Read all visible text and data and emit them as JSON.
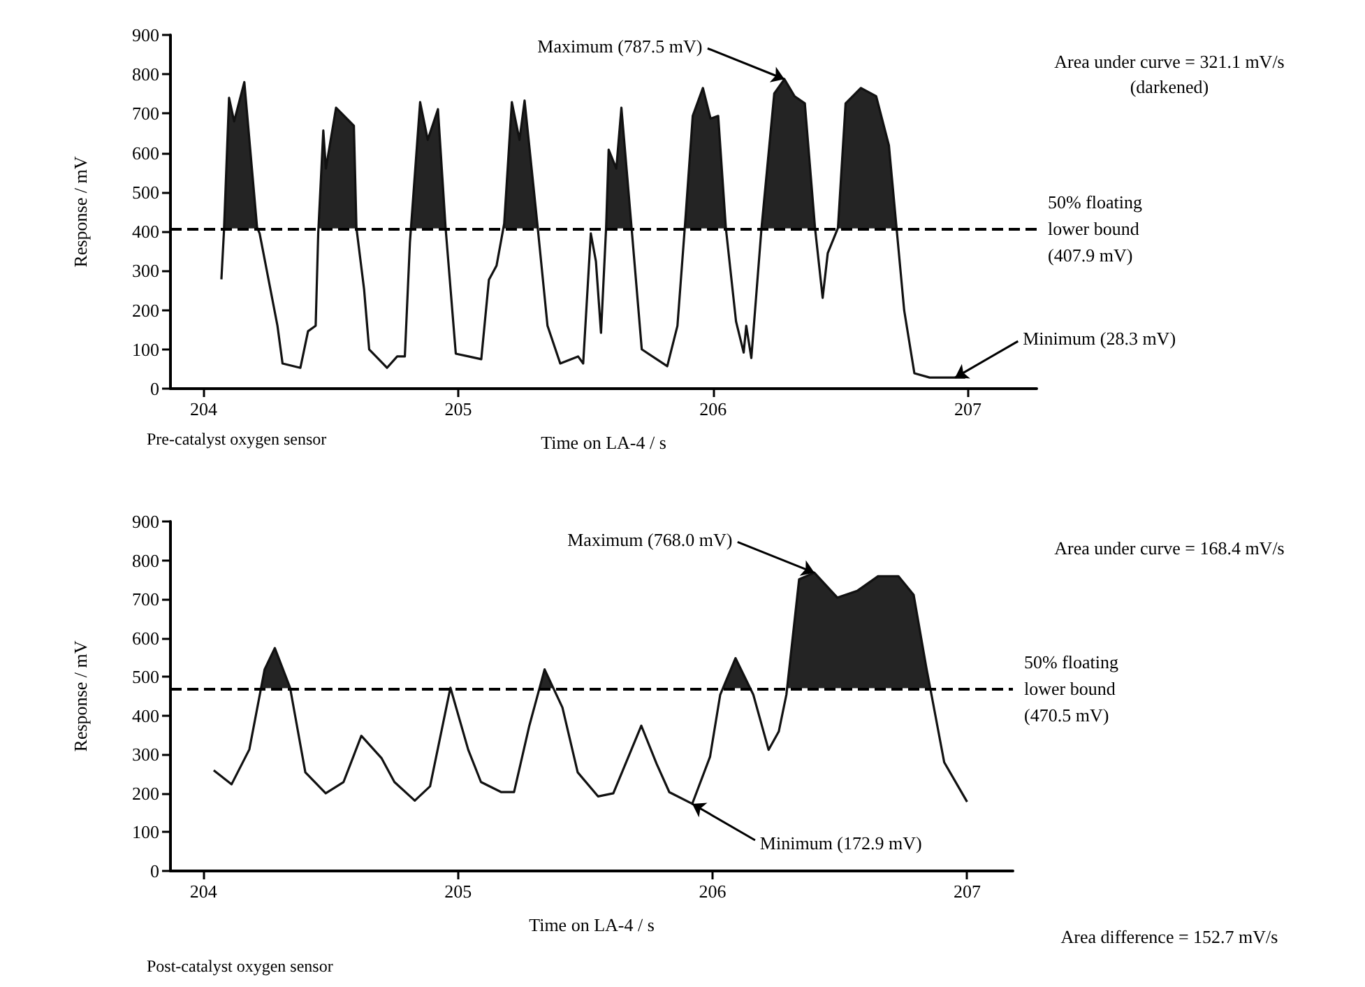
{
  "chart_data": [
    {
      "type": "area",
      "title": "Pre-catalyst oxygen sensor",
      "xlabel": "Time on LA-4 / s",
      "ylabel": "Response / mV",
      "marker": "none",
      "xlim": [
        203.87,
        207.27
      ],
      "xticks": [
        204,
        205,
        206,
        207
      ],
      "ylim": [
        0,
        900
      ],
      "yticks": [
        0,
        100,
        200,
        300,
        400,
        500,
        600,
        700,
        800,
        900
      ],
      "series": [
        {
          "color": "#111111",
          "x": [
            204.07,
            204.08,
            204.1,
            204.12,
            204.16,
            204.21,
            204.22,
            204.29,
            204.31,
            204.38,
            204.41,
            204.44,
            204.45,
            204.47,
            204.48,
            204.52,
            204.59,
            204.6,
            204.63,
            204.65,
            204.72,
            204.76,
            204.79,
            204.81,
            204.85,
            204.88,
            204.92,
            204.95,
            204.99,
            205.04,
            205.09,
            205.12,
            205.15,
            205.18,
            205.21,
            205.24,
            205.26,
            205.31,
            205.35,
            205.4,
            205.47,
            205.49,
            205.52,
            205.54,
            205.56,
            205.58,
            205.59,
            205.62,
            205.64,
            205.68,
            205.72,
            205.82,
            205.86,
            205.89,
            205.92,
            205.96,
            205.99,
            206.02,
            206.05,
            206.09,
            206.12,
            206.13,
            206.15,
            206.19,
            206.24,
            206.28,
            206.32,
            206.36,
            206.4,
            206.43,
            206.45,
            206.49,
            206.52,
            206.58,
            206.64,
            206.69,
            206.72,
            206.75,
            206.79,
            206.85,
            206.99
          ],
          "values": [
            278,
            400,
            740,
            680,
            780,
            410,
            395,
            160,
            64,
            53,
            146,
            160,
            395,
            657,
            560,
            715,
            669,
            409,
            253,
            100,
            53,
            82,
            82,
            373,
            729,
            633,
            711,
            409,
            89,
            82,
            75,
            277,
            313,
            420,
            729,
            633,
            733,
            420,
            160,
            64,
            82,
            64,
            395,
            324,
            142,
            409,
            608,
            560,
            715,
            409,
            100,
            57,
            160,
            420,
            694,
            765,
            687,
            694,
            409,
            171,
            92,
            160,
            78,
            409,
            751,
            787.5,
            744,
            726,
            409,
            231,
            345,
            409,
            726,
            765,
            744,
            619,
            409,
            199,
            39,
            28.3,
            28.3
          ]
        }
      ],
      "ref_lines": [
        {
          "axis": "y",
          "value": 407.9,
          "label": "50% floating\nlower bound\n(407.9 mV)",
          "line_style": "dashed"
        }
      ],
      "annotations": [
        {
          "text": "Maximum (787.5 mV)",
          "x": 206.28,
          "y": 787.5
        },
        {
          "text": "Minimum (28.3 mV)",
          "x": 206.95,
          "y": 28.3
        },
        "Area under curve = 321.1 mV/s\n(darkened)"
      ]
    },
    {
      "type": "area",
      "title": "Post-catalyst oxygen sensor",
      "xlabel": "Time on LA-4 / s",
      "ylabel": "Response / mV",
      "marker": "none",
      "xlim": [
        203.87,
        207.18
      ],
      "xticks": [
        204,
        205,
        206,
        207
      ],
      "ylim": [
        0,
        900
      ],
      "yticks": [
        0,
        100,
        200,
        300,
        400,
        500,
        600,
        700,
        800,
        900
      ],
      "series": [
        {
          "color": "#111111",
          "x": [
            204.04,
            204.11,
            204.18,
            204.24,
            204.28,
            204.34,
            204.4,
            204.48,
            204.55,
            204.62,
            204.7,
            204.75,
            204.83,
            204.89,
            204.97,
            205.04,
            205.09,
            205.17,
            205.22,
            205.28,
            205.34,
            205.41,
            205.47,
            205.55,
            205.61,
            205.72,
            205.78,
            205.83,
            205.92,
            205.99,
            206.03,
            206.09,
            206.16,
            206.22,
            206.26,
            206.29,
            206.34,
            206.4,
            206.49,
            206.57,
            206.65,
            206.73,
            206.79,
            206.84,
            206.86,
            206.91,
            207.0
          ],
          "values": [
            259,
            223,
            313,
            519,
            574,
            472,
            254,
            200,
            229,
            348,
            290,
            229,
            181,
            218,
            472,
            312,
            229,
            203,
            203,
            374,
            519,
            421,
            254,
            192,
            200,
            374,
            276,
            203,
            172.9,
            294,
            454,
            548,
            454,
            312,
            359,
            454,
            751,
            768,
            704,
            722,
            759,
            759,
            711,
            523,
            454,
            280,
            178
          ]
        }
      ],
      "ref_lines": [
        {
          "axis": "y",
          "value": 470.5,
          "label": "50% floating\nlower bound\n(470.5 mV)",
          "line_style": "dashed"
        }
      ],
      "annotations": [
        {
          "text": "Maximum (768.0 mV)",
          "x": 206.4,
          "y": 768
        },
        {
          "text": "Minimum (172.9 mV)",
          "x": 205.92,
          "y": 172.9
        },
        "Area under curve = 168.4 mV/s",
        "Area difference = 152.7 mV/s"
      ]
    }
  ]
}
